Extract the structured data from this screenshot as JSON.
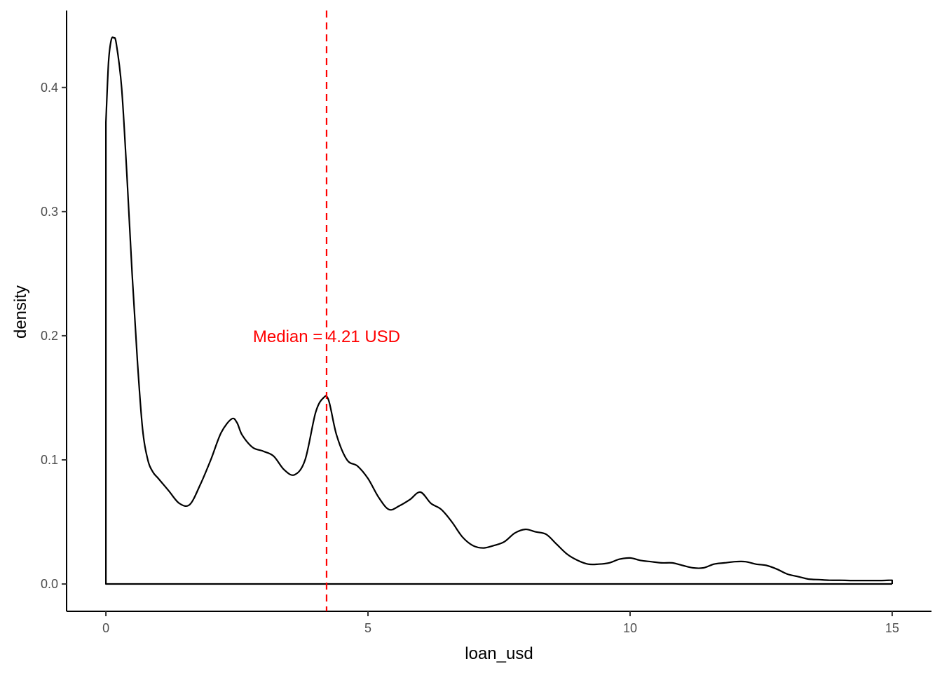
{
  "chart_data": {
    "type": "area",
    "title": "",
    "xlabel": "loan_usd",
    "ylabel": "density",
    "xlim": [
      -0.75,
      15.75
    ],
    "ylim": [
      -0.022,
      0.462
    ],
    "x_ticks": [
      0,
      5,
      10,
      15
    ],
    "x_tick_labels": [
      "0",
      "5",
      "10",
      "15"
    ],
    "y_ticks": [
      0.0,
      0.1,
      0.2,
      0.3,
      0.4
    ],
    "y_tick_labels": [
      "0.0",
      "0.1",
      "0.2",
      "0.3",
      "0.4"
    ],
    "grid": false,
    "legend": "none",
    "series": [
      {
        "color": "#000000",
        "fill": "none",
        "x": [
          0.0,
          0.05,
          0.1,
          0.15,
          0.2,
          0.3,
          0.4,
          0.5,
          0.6,
          0.7,
          0.8,
          0.9,
          1.0,
          1.2,
          1.4,
          1.6,
          1.8,
          2.0,
          2.2,
          2.4,
          2.5,
          2.6,
          2.8,
          3.0,
          3.2,
          3.4,
          3.6,
          3.8,
          4.0,
          4.15,
          4.25,
          4.4,
          4.6,
          4.8,
          5.0,
          5.2,
          5.4,
          5.6,
          5.8,
          6.0,
          6.2,
          6.4,
          6.6,
          6.8,
          7.0,
          7.2,
          7.4,
          7.6,
          7.8,
          8.0,
          8.2,
          8.4,
          8.6,
          8.8,
          9.0,
          9.2,
          9.4,
          9.6,
          9.8,
          10.0,
          10.2,
          10.4,
          10.6,
          10.8,
          11.0,
          11.2,
          11.4,
          11.6,
          11.8,
          12.0,
          12.2,
          12.4,
          12.6,
          12.8,
          13.0,
          13.2,
          13.4,
          13.6,
          13.8,
          14.0,
          14.2,
          14.4,
          14.6,
          14.8,
          14.95,
          15.0
        ],
        "y": [
          0.372,
          0.42,
          0.438,
          0.44,
          0.435,
          0.4,
          0.33,
          0.25,
          0.18,
          0.125,
          0.1,
          0.09,
          0.085,
          0.075,
          0.065,
          0.064,
          0.08,
          0.1,
          0.122,
          0.133,
          0.13,
          0.12,
          0.11,
          0.107,
          0.103,
          0.092,
          0.088,
          0.1,
          0.138,
          0.15,
          0.148,
          0.12,
          0.1,
          0.095,
          0.085,
          0.07,
          0.06,
          0.063,
          0.068,
          0.074,
          0.065,
          0.06,
          0.05,
          0.038,
          0.031,
          0.029,
          0.031,
          0.034,
          0.041,
          0.044,
          0.042,
          0.04,
          0.032,
          0.024,
          0.019,
          0.016,
          0.016,
          0.017,
          0.02,
          0.021,
          0.019,
          0.018,
          0.017,
          0.017,
          0.015,
          0.013,
          0.013,
          0.016,
          0.017,
          0.018,
          0.018,
          0.016,
          0.015,
          0.012,
          0.008,
          0.006,
          0.004,
          0.0035,
          0.003,
          0.003,
          0.0028,
          0.0028,
          0.0028,
          0.0028,
          0.003,
          0.003
        ]
      }
    ],
    "reference_line": {
      "x": 4.21,
      "color": "#ff0000",
      "style": "dashed"
    },
    "annotation": {
      "text": "Median = 4.21 USD",
      "x": 4.21,
      "y": 0.2,
      "color": "#ff0000"
    }
  }
}
